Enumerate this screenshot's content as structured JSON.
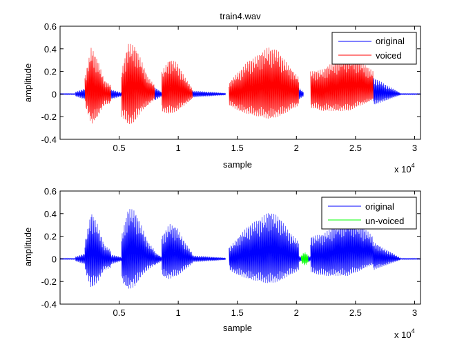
{
  "figure": {
    "background": "#ffffff",
    "axes_color": "#000000"
  },
  "chart_data": [
    {
      "type": "line",
      "title": "train4.wav",
      "xlabel": "sample",
      "ylabel": "amplitude",
      "x_exponent_label": "x 10",
      "x_exponent_power": "4",
      "xlim": [
        0,
        30500
      ],
      "ylim": [
        -0.4,
        0.6
      ],
      "xticks": [
        5000,
        10000,
        15000,
        20000,
        25000,
        30000
      ],
      "xtick_labels": [
        "0.5",
        "1",
        "1.5",
        "2",
        "2.5",
        "3"
      ],
      "yticks": [
        -0.4,
        -0.2,
        0,
        0.2,
        0.4,
        0.6
      ],
      "ytick_labels": [
        "-0.4",
        "-0.2",
        "0",
        "0.2",
        "0.4",
        "0.6"
      ],
      "grid": false,
      "legend_position": "top-right",
      "series": [
        {
          "name": "original",
          "color": "#0000ff",
          "segments": [
            {
              "x_start": 0,
              "x_end": 1300,
              "env_top": [
                0.005,
                0.005
              ],
              "env_bottom": [
                -0.005,
                -0.005
              ]
            },
            {
              "x_start": 1300,
              "x_end": 2100,
              "env_top": [
                0.02,
                0.05
              ],
              "env_bottom": [
                -0.02,
                -0.05
              ]
            },
            {
              "x_start": 4300,
              "x_end": 5200,
              "env_top": [
                0.04,
                0.015
              ],
              "env_bottom": [
                -0.05,
                -0.02
              ]
            },
            {
              "x_start": 8000,
              "x_end": 8600,
              "env_top": [
                0.06,
                0.02
              ],
              "env_bottom": [
                -0.06,
                -0.02
              ]
            },
            {
              "x_start": 11200,
              "x_end": 14000,
              "env_top": [
                0.03,
                0.01
              ],
              "env_bottom": [
                -0.03,
                -0.01
              ]
            },
            {
              "x_start": 20200,
              "x_end": 20600,
              "env_top": [
                0.06,
                0.02
              ],
              "env_bottom": [
                -0.05,
                -0.02
              ]
            },
            {
              "x_start": 26500,
              "x_end": 28800,
              "env_top": [
                0.15,
                0.01
              ],
              "env_bottom": [
                -0.1,
                -0.01
              ]
            },
            {
              "x_start": 28800,
              "x_end": 30500,
              "env_top": [
                0.005,
                0.005
              ],
              "env_bottom": [
                -0.005,
                -0.005
              ]
            }
          ]
        },
        {
          "name": "voiced",
          "color": "#ff0000",
          "segments": [
            {
              "x_start": 2100,
              "x_end": 4300,
              "env_top": [
                0.15,
                0.42,
                0.3,
                0.12,
                0.08
              ],
              "env_bottom": [
                -0.1,
                -0.27,
                -0.2,
                -0.1,
                -0.08
              ]
            },
            {
              "x_start": 5200,
              "x_end": 8000,
              "env_top": [
                0.2,
                0.45,
                0.43,
                0.3,
                0.15,
                0.08
              ],
              "env_bottom": [
                -0.2,
                -0.27,
                -0.25,
                -0.15,
                -0.1,
                -0.05
              ]
            },
            {
              "x_start": 8600,
              "x_end": 11200,
              "env_top": [
                0.2,
                0.31,
                0.28,
                0.15,
                0.05
              ],
              "env_bottom": [
                -0.15,
                -0.18,
                -0.15,
                -0.1,
                -0.04
              ]
            },
            {
              "x_start": 14300,
              "x_end": 20200,
              "env_top": [
                0.1,
                0.2,
                0.3,
                0.35,
                0.42,
                0.38,
                0.25,
                0.15
              ],
              "env_bottom": [
                -0.1,
                -0.15,
                -0.18,
                -0.2,
                -0.22,
                -0.2,
                -0.15,
                -0.1
              ]
            },
            {
              "x_start": 21200,
              "x_end": 26500,
              "env_top": [
                0.2,
                0.22,
                0.3,
                0.35,
                0.3,
                0.2
              ],
              "env_bottom": [
                -0.12,
                -0.15,
                -0.15,
                -0.15,
                -0.1,
                -0.05
              ]
            }
          ]
        }
      ]
    },
    {
      "type": "line",
      "title": "",
      "xlabel": "sample",
      "ylabel": "amplitude",
      "x_exponent_label": "x 10",
      "x_exponent_power": "4",
      "xlim": [
        0,
        30500
      ],
      "ylim": [
        -0.4,
        0.6
      ],
      "xticks": [
        5000,
        10000,
        15000,
        20000,
        25000,
        30000
      ],
      "xtick_labels": [
        "0.5",
        "1",
        "1.5",
        "2",
        "2.5",
        "3"
      ],
      "yticks": [
        -0.4,
        -0.2,
        0,
        0.2,
        0.4,
        0.6
      ],
      "ytick_labels": [
        "-0.4",
        "-0.2",
        "0",
        "0.2",
        "0.4",
        "0.6"
      ],
      "grid": false,
      "legend_position": "top-right",
      "series": [
        {
          "name": "original",
          "color": "#0000ff",
          "segments": [
            {
              "x_start": 0,
              "x_end": 1300,
              "env_top": [
                0.005,
                0.005
              ],
              "env_bottom": [
                -0.005,
                -0.005
              ]
            },
            {
              "x_start": 1300,
              "x_end": 2100,
              "env_top": [
                0.02,
                0.05
              ],
              "env_bottom": [
                -0.02,
                -0.05
              ]
            },
            {
              "x_start": 2100,
              "x_end": 4300,
              "env_top": [
                0.15,
                0.42,
                0.3,
                0.12,
                0.08
              ],
              "env_bottom": [
                -0.1,
                -0.27,
                -0.2,
                -0.1,
                -0.08
              ]
            },
            {
              "x_start": 4300,
              "x_end": 5200,
              "env_top": [
                0.04,
                0.015
              ],
              "env_bottom": [
                -0.05,
                -0.02
              ]
            },
            {
              "x_start": 5200,
              "x_end": 8000,
              "env_top": [
                0.2,
                0.45,
                0.43,
                0.3,
                0.15,
                0.08
              ],
              "env_bottom": [
                -0.2,
                -0.27,
                -0.25,
                -0.15,
                -0.1,
                -0.05
              ]
            },
            {
              "x_start": 8000,
              "x_end": 8600,
              "env_top": [
                0.06,
                0.02
              ],
              "env_bottom": [
                -0.06,
                -0.02
              ]
            },
            {
              "x_start": 8600,
              "x_end": 11200,
              "env_top": [
                0.2,
                0.31,
                0.28,
                0.15,
                0.05
              ],
              "env_bottom": [
                -0.15,
                -0.18,
                -0.15,
                -0.1,
                -0.04
              ]
            },
            {
              "x_start": 11200,
              "x_end": 14000,
              "env_top": [
                0.03,
                0.01
              ],
              "env_bottom": [
                -0.03,
                -0.01
              ]
            },
            {
              "x_start": 14300,
              "x_end": 20200,
              "env_top": [
                0.1,
                0.2,
                0.3,
                0.35,
                0.42,
                0.38,
                0.25,
                0.15
              ],
              "env_bottom": [
                -0.1,
                -0.15,
                -0.18,
                -0.2,
                -0.22,
                -0.2,
                -0.15,
                -0.1
              ]
            },
            {
              "x_start": 20200,
              "x_end": 20400,
              "env_top": [
                0.03,
                0.02
              ],
              "env_bottom": [
                -0.03,
                -0.02
              ]
            },
            {
              "x_start": 21000,
              "x_end": 21200,
              "env_top": [
                0.03,
                0.02
              ],
              "env_bottom": [
                -0.03,
                -0.02
              ]
            },
            {
              "x_start": 21200,
              "x_end": 26500,
              "env_top": [
                0.2,
                0.22,
                0.3,
                0.35,
                0.3,
                0.2
              ],
              "env_bottom": [
                -0.12,
                -0.15,
                -0.15,
                -0.15,
                -0.1,
                -0.05
              ]
            },
            {
              "x_start": 26500,
              "x_end": 28800,
              "env_top": [
                0.15,
                0.01
              ],
              "env_bottom": [
                -0.1,
                -0.01
              ]
            },
            {
              "x_start": 28800,
              "x_end": 30500,
              "env_top": [
                0.005,
                0.005
              ],
              "env_bottom": [
                -0.005,
                -0.005
              ]
            }
          ]
        },
        {
          "name": "un-voiced",
          "color": "#00ff00",
          "segments": [
            {
              "x_start": 20400,
              "x_end": 21000,
              "env_top": [
                0.03,
                0.05,
                0.06,
                0.05,
                0.03
              ],
              "env_bottom": [
                -0.03,
                -0.05,
                -0.06,
                -0.05,
                -0.03
              ]
            }
          ]
        }
      ]
    }
  ]
}
